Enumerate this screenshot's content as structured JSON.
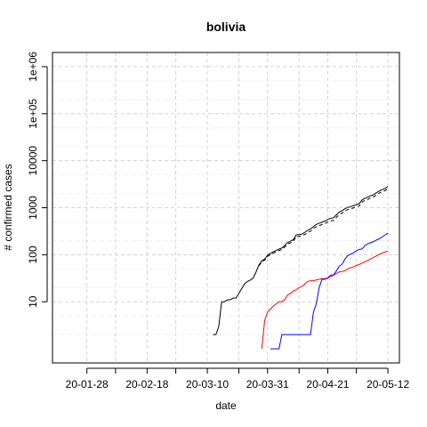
{
  "chart_data": {
    "type": "line",
    "title": "bolivia",
    "xlabel": "date",
    "ylabel": "# confirmed cases",
    "y_scale": "log",
    "ylim": [
      0.5,
      2000000
    ],
    "xlim": [
      "2020-01-16",
      "2020-05-16"
    ],
    "grid": true,
    "legend": "none",
    "x_ticks": [
      {
        "date": "2020-01-28",
        "label": "20-01-28"
      },
      {
        "date": "2020-02-18",
        "label": "20-02-18"
      },
      {
        "date": "2020-03-10",
        "label": "20-03-10"
      },
      {
        "date": "2020-03-31",
        "label": "20-03-31"
      },
      {
        "date": "2020-04-21",
        "label": "20-04-21"
      },
      {
        "date": "2020-05-12",
        "label": "20-05-12"
      }
    ],
    "x_minor_gridlines": [
      "2020-01-28",
      "2020-02-07",
      "2020-02-18",
      "2020-02-28",
      "2020-03-10",
      "2020-03-21",
      "2020-03-31",
      "2020-04-11",
      "2020-04-21",
      "2020-05-01",
      "2020-05-12"
    ],
    "y_ticks": [
      {
        "value": 10,
        "label": "10"
      },
      {
        "value": 100,
        "label": "100"
      },
      {
        "value": 1000,
        "label": "1000"
      },
      {
        "value": 10000,
        "label": "10000"
      },
      {
        "value": 100000,
        "label": "1e+05"
      },
      {
        "value": 1000000,
        "label": "1e+06"
      }
    ],
    "series": [
      {
        "color": "#000000",
        "dash": "solid",
        "points": [
          [
            "2020-03-12",
            2
          ],
          [
            "2020-03-13",
            2
          ],
          [
            "2020-03-14",
            3
          ],
          [
            "2020-03-15",
            10
          ],
          [
            "2020-03-16",
            10
          ],
          [
            "2020-03-17",
            11
          ],
          [
            "2020-03-18",
            11
          ],
          [
            "2020-03-19",
            12
          ],
          [
            "2020-03-20",
            12
          ],
          [
            "2020-03-21",
            15
          ],
          [
            "2020-03-22",
            19
          ],
          [
            "2020-03-23",
            24
          ],
          [
            "2020-03-24",
            27
          ],
          [
            "2020-03-25",
            29
          ],
          [
            "2020-03-26",
            32
          ],
          [
            "2020-03-27",
            43
          ],
          [
            "2020-03-28",
            61
          ],
          [
            "2020-03-29",
            74
          ],
          [
            "2020-03-30",
            81
          ],
          [
            "2020-03-31",
            97
          ],
          [
            "2020-04-01",
            107
          ],
          [
            "2020-04-02",
            115
          ],
          [
            "2020-04-03",
            123
          ],
          [
            "2020-04-04",
            132
          ],
          [
            "2020-04-05",
            139
          ],
          [
            "2020-04-06",
            157
          ],
          [
            "2020-04-07",
            183
          ],
          [
            "2020-04-08",
            194
          ],
          [
            "2020-04-09",
            210
          ],
          [
            "2020-04-10",
            264
          ],
          [
            "2020-04-11",
            268
          ],
          [
            "2020-04-12",
            275
          ],
          [
            "2020-04-13",
            300
          ],
          [
            "2020-04-14",
            330
          ],
          [
            "2020-04-15",
            354
          ],
          [
            "2020-04-16",
            397
          ],
          [
            "2020-04-17",
            441
          ],
          [
            "2020-04-18",
            465
          ],
          [
            "2020-04-19",
            493
          ],
          [
            "2020-04-20",
            520
          ],
          [
            "2020-04-21",
            564
          ],
          [
            "2020-04-22",
            598
          ],
          [
            "2020-04-23",
            609
          ],
          [
            "2020-04-24",
            703
          ],
          [
            "2020-04-25",
            807
          ],
          [
            "2020-04-26",
            866
          ],
          [
            "2020-04-27",
            950
          ],
          [
            "2020-04-28",
            1014
          ],
          [
            "2020-04-29",
            1053
          ],
          [
            "2020-04-30",
            1110
          ],
          [
            "2020-05-01",
            1167
          ],
          [
            "2020-05-02",
            1229
          ],
          [
            "2020-05-03",
            1470
          ],
          [
            "2020-05-04",
            1594
          ],
          [
            "2020-05-05",
            1681
          ],
          [
            "2020-05-06",
            1802
          ],
          [
            "2020-05-07",
            1886
          ],
          [
            "2020-05-08",
            2081
          ],
          [
            "2020-05-09",
            2266
          ],
          [
            "2020-05-10",
            2437
          ],
          [
            "2020-05-11",
            2556
          ],
          [
            "2020-05-12",
            2831
          ]
        ]
      },
      {
        "color": "#000000",
        "dash": "dashed",
        "points": [
          [
            "2020-03-28",
            58
          ],
          [
            "2020-03-29",
            70
          ],
          [
            "2020-03-30",
            77
          ],
          [
            "2020-03-31",
            92
          ],
          [
            "2020-04-01",
            101
          ],
          [
            "2020-04-02",
            108
          ],
          [
            "2020-04-03",
            115
          ],
          [
            "2020-04-04",
            123
          ],
          [
            "2020-04-05",
            129
          ],
          [
            "2020-04-06",
            146
          ],
          [
            "2020-04-07",
            170
          ],
          [
            "2020-04-08",
            179
          ],
          [
            "2020-04-09",
            193
          ],
          [
            "2020-04-10",
            242
          ],
          [
            "2020-04-11",
            245
          ],
          [
            "2020-04-12",
            250
          ],
          [
            "2020-04-13",
            272
          ],
          [
            "2020-04-14",
            297
          ],
          [
            "2020-04-15",
            318
          ],
          [
            "2020-04-16",
            356
          ],
          [
            "2020-04-17",
            396
          ],
          [
            "2020-04-18",
            416
          ],
          [
            "2020-04-19",
            440
          ],
          [
            "2020-04-20",
            462
          ],
          [
            "2020-04-21",
            500
          ],
          [
            "2020-04-22",
            531
          ],
          [
            "2020-04-23",
            535
          ],
          [
            "2020-04-24",
            623
          ],
          [
            "2020-04-25",
            717
          ],
          [
            "2020-04-26",
            770
          ],
          [
            "2020-04-27",
            851
          ],
          [
            "2020-04-28",
            909
          ],
          [
            "2020-04-29",
            945
          ],
          [
            "2020-04-30",
            995
          ],
          [
            "2020-05-01",
            1046
          ],
          [
            "2020-05-02",
            1101
          ],
          [
            "2020-05-03",
            1321
          ],
          [
            "2020-05-04",
            1435
          ],
          [
            "2020-05-05",
            1514
          ],
          [
            "2020-05-06",
            1625
          ],
          [
            "2020-05-07",
            1700
          ],
          [
            "2020-05-08",
            1878
          ],
          [
            "2020-05-09",
            2048
          ],
          [
            "2020-05-10",
            2204
          ],
          [
            "2020-05-11",
            2314
          ],
          [
            "2020-05-12",
            2564
          ]
        ]
      },
      {
        "color": "#ff0000",
        "dash": "solid",
        "points": [
          [
            "2020-03-29",
            1
          ],
          [
            "2020-03-30",
            4
          ],
          [
            "2020-03-31",
            6
          ],
          [
            "2020-04-01",
            7
          ],
          [
            "2020-04-02",
            8
          ],
          [
            "2020-04-03",
            9
          ],
          [
            "2020-04-04",
            10
          ],
          [
            "2020-04-05",
            10
          ],
          [
            "2020-04-06",
            11
          ],
          [
            "2020-04-07",
            14
          ],
          [
            "2020-04-08",
            15
          ],
          [
            "2020-04-09",
            17
          ],
          [
            "2020-04-10",
            18
          ],
          [
            "2020-04-11",
            20
          ],
          [
            "2020-04-12",
            21
          ],
          [
            "2020-04-13",
            24
          ],
          [
            "2020-04-14",
            27
          ],
          [
            "2020-04-15",
            28
          ],
          [
            "2020-04-16",
            28
          ],
          [
            "2020-04-17",
            29
          ],
          [
            "2020-04-18",
            30
          ],
          [
            "2020-04-19",
            31
          ],
          [
            "2020-04-20",
            31
          ],
          [
            "2020-04-21",
            32
          ],
          [
            "2020-04-22",
            34
          ],
          [
            "2020-04-23",
            37
          ],
          [
            "2020-04-24",
            40
          ],
          [
            "2020-04-25",
            43
          ],
          [
            "2020-04-26",
            44
          ],
          [
            "2020-04-27",
            46
          ],
          [
            "2020-04-28",
            50
          ],
          [
            "2020-04-29",
            53
          ],
          [
            "2020-04-30",
            55
          ],
          [
            "2020-05-01",
            59
          ],
          [
            "2020-05-02",
            62
          ],
          [
            "2020-05-03",
            66
          ],
          [
            "2020-05-04",
            71
          ],
          [
            "2020-05-05",
            76
          ],
          [
            "2020-05-06",
            82
          ],
          [
            "2020-05-07",
            88
          ],
          [
            "2020-05-08",
            95
          ],
          [
            "2020-05-09",
            102
          ],
          [
            "2020-05-10",
            109
          ],
          [
            "2020-05-11",
            114
          ],
          [
            "2020-05-12",
            120
          ]
        ]
      },
      {
        "color": "#0000ff",
        "dash": "solid",
        "points": [
          [
            "2020-04-01",
            1
          ],
          [
            "2020-04-02",
            1
          ],
          [
            "2020-04-03",
            1
          ],
          [
            "2020-04-04",
            1
          ],
          [
            "2020-04-05",
            2
          ],
          [
            "2020-04-06",
            2
          ],
          [
            "2020-04-07",
            2
          ],
          [
            "2020-04-08",
            2
          ],
          [
            "2020-04-09",
            2
          ],
          [
            "2020-04-10",
            2
          ],
          [
            "2020-04-11",
            2
          ],
          [
            "2020-04-12",
            2
          ],
          [
            "2020-04-13",
            2
          ],
          [
            "2020-04-14",
            2
          ],
          [
            "2020-04-15",
            2
          ],
          [
            "2020-04-16",
            6
          ],
          [
            "2020-04-17",
            9
          ],
          [
            "2020-04-18",
            20
          ],
          [
            "2020-04-19",
            30
          ],
          [
            "2020-04-20",
            30
          ],
          [
            "2020-04-21",
            32
          ],
          [
            "2020-04-22",
            37
          ],
          [
            "2020-04-23",
            37
          ],
          [
            "2020-04-24",
            45
          ],
          [
            "2020-04-25",
            57
          ],
          [
            "2020-04-26",
            63
          ],
          [
            "2020-04-27",
            81
          ],
          [
            "2020-04-28",
            96
          ],
          [
            "2020-04-29",
            103
          ],
          [
            "2020-04-30",
            110
          ],
          [
            "2020-05-01",
            122
          ],
          [
            "2020-05-02",
            130
          ],
          [
            "2020-05-03",
            133
          ],
          [
            "2020-05-04",
            158
          ],
          [
            "2020-05-05",
            171
          ],
          [
            "2020-05-06",
            181
          ],
          [
            "2020-05-07",
            191
          ],
          [
            "2020-05-08",
            205
          ],
          [
            "2020-05-09",
            220
          ],
          [
            "2020-05-10",
            240
          ],
          [
            "2020-05-11",
            262
          ],
          [
            "2020-05-12",
            288
          ]
        ]
      }
    ]
  }
}
